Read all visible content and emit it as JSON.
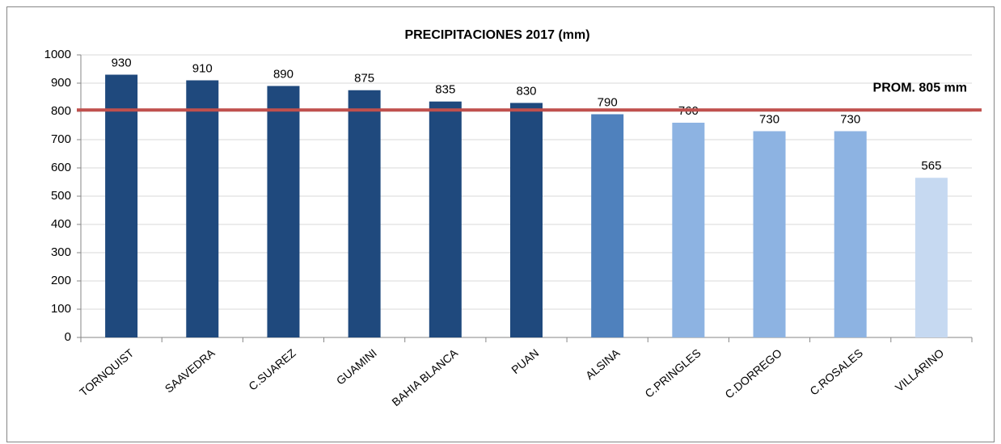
{
  "chart_data": {
    "type": "bar",
    "title": "PRECIPITACIONES 2017 (mm)",
    "categories": [
      "TORNQUIST",
      "SAAVEDRA",
      "C.SUAREZ",
      "GUAMINI",
      "BAHIA BLANCA",
      "PUAN",
      "ALSINA",
      "C.PRINGLES",
      "C.DORREGO",
      "C.ROSALES",
      "VILLARINO"
    ],
    "values": [
      930,
      910,
      890,
      875,
      835,
      830,
      790,
      760,
      730,
      730,
      565
    ],
    "colors": [
      "#1f497d",
      "#1f497d",
      "#1f497d",
      "#1f497d",
      "#1f497d",
      "#1f497d",
      "#4f81bd",
      "#8db3e2",
      "#8db3e2",
      "#8db3e2",
      "#c6d9f1"
    ],
    "ylim": [
      0,
      1000
    ],
    "yticks": [
      0,
      100,
      200,
      300,
      400,
      500,
      600,
      700,
      800,
      900,
      1000
    ],
    "grid": true,
    "reference_line": {
      "value": 805,
      "label": "PROM. 805 mm",
      "color": "#c0504d"
    }
  }
}
